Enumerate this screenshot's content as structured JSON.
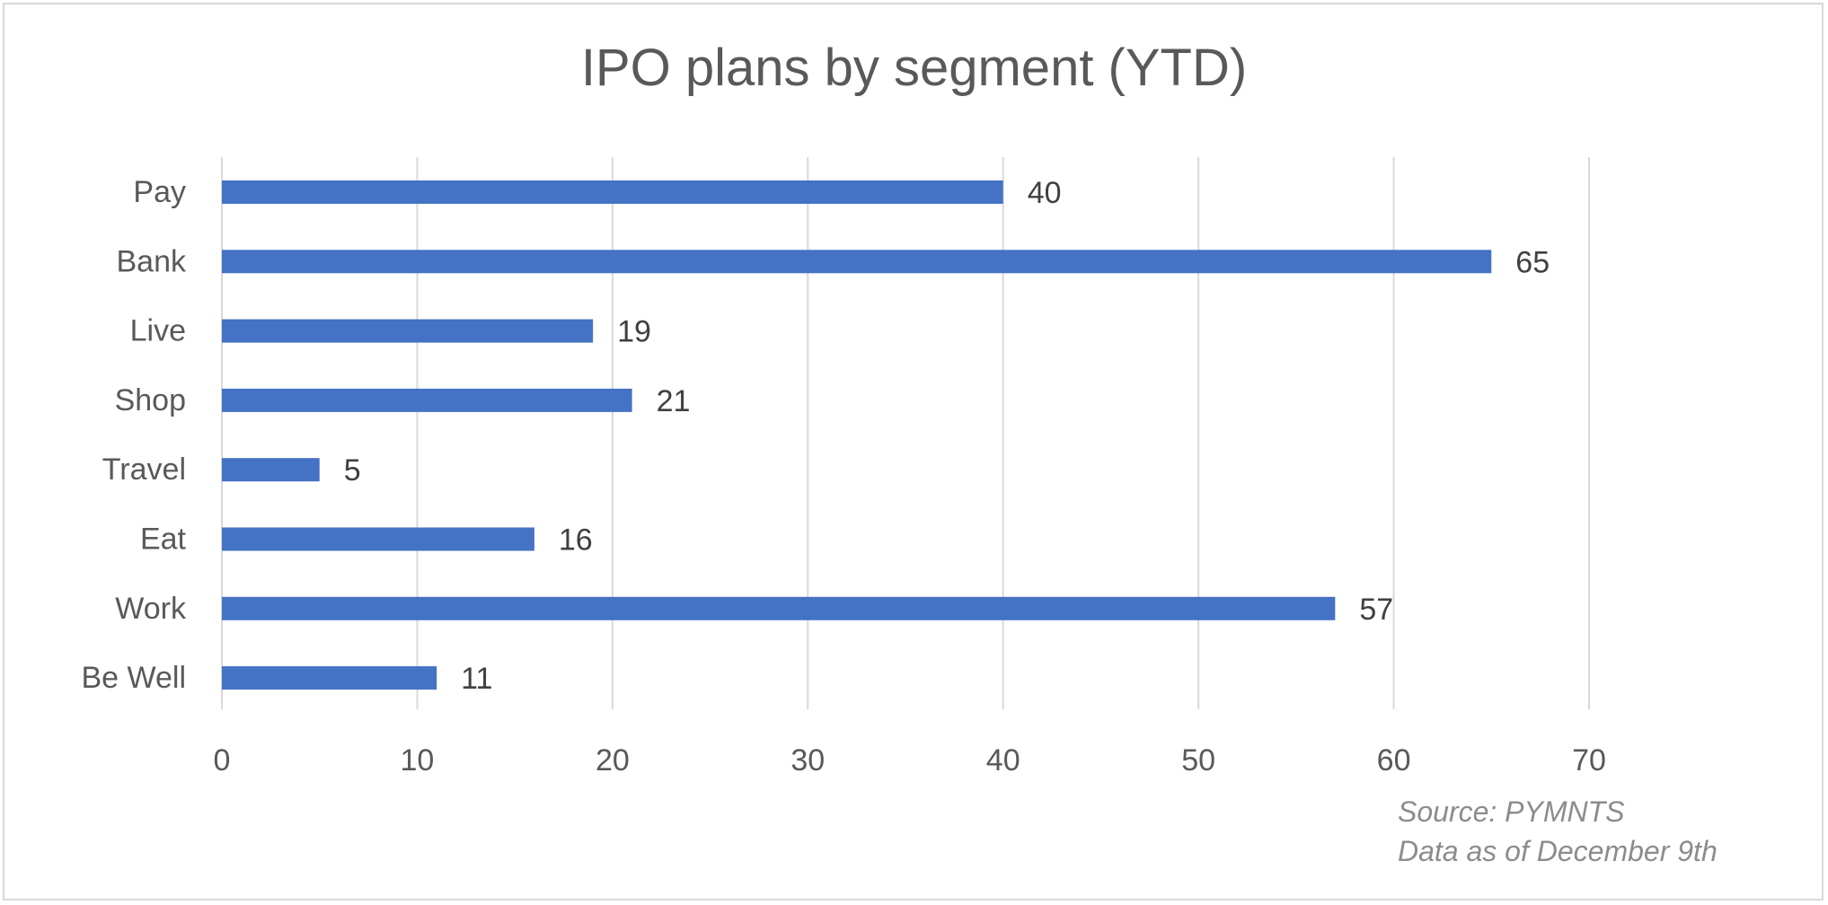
{
  "chart_data": {
    "type": "bar",
    "orientation": "horizontal",
    "title": "IPO plans by segment (YTD)",
    "categories": [
      "Pay",
      "Bank",
      "Live",
      "Shop",
      "Travel",
      "Eat",
      "Work",
      "Be Well"
    ],
    "values": [
      40,
      65,
      19,
      21,
      5,
      16,
      57,
      11
    ],
    "xlim": [
      0,
      70
    ],
    "xticks": [
      0,
      10,
      20,
      30,
      40,
      50,
      60,
      70
    ],
    "grid": true,
    "data_labels": true,
    "bar_color": "#4472C4",
    "notes": [
      "Source: PYMNTS",
      "Data as of December 9th"
    ]
  }
}
